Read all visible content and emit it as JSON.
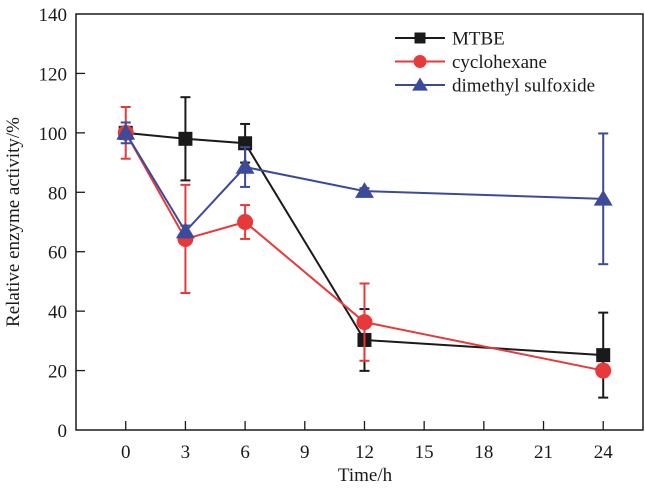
{
  "chart_data": {
    "type": "line",
    "title": "",
    "xlabel": "Time/h",
    "ylabel": "Relative enzyme activity/%",
    "xlim": [
      -2.5,
      26
    ],
    "ylim": [
      0,
      140
    ],
    "x_ticks": [
      0,
      3,
      6,
      9,
      12,
      15,
      18,
      21,
      24
    ],
    "x_tick_labels": [
      "0",
      "3",
      "6",
      "9",
      "12",
      "15",
      "18",
      "21",
      "24"
    ],
    "y_ticks": [
      0,
      20,
      40,
      60,
      80,
      100,
      120,
      140
    ],
    "y_tick_labels": [
      "0",
      "20",
      "40",
      "60",
      "80",
      "100",
      "120",
      "140"
    ],
    "grid": false,
    "legend": {
      "placement": "top-right",
      "frame": false
    },
    "x": [
      0,
      3,
      6,
      12,
      24
    ],
    "series": [
      {
        "name": "MTBE",
        "color": "#1a1a1a",
        "marker": "square",
        "values": [
          100,
          98,
          96.5,
          30.3,
          25.2
        ],
        "errors": [
          2,
          14,
          6.5,
          10.4,
          14.3
        ]
      },
      {
        "name": "cyclohexane",
        "color": "#e8393a",
        "marker": "circle",
        "values": [
          100,
          64.3,
          70,
          36.3,
          20
        ],
        "errors": [
          8.7,
          18.2,
          5.7,
          13,
          2
        ]
      },
      {
        "name": "dimethyl sulfoxide",
        "color": "#3b4a99",
        "marker": "triangle",
        "values": [
          100,
          66.8,
          88.5,
          80.4,
          77.8
        ],
        "errors": [
          3.5,
          2,
          6.7,
          1,
          22
        ]
      }
    ]
  }
}
